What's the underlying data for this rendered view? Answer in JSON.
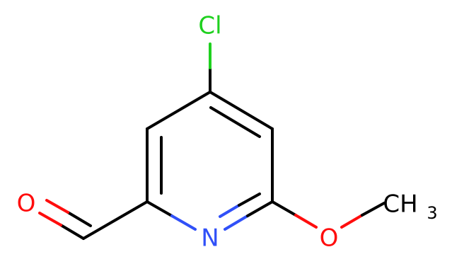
{
  "atoms": [
    {
      "label": "Cl"
    },
    {
      "label": "O"
    },
    {
      "label": "N"
    },
    {
      "label": "O"
    },
    {
      "label": "CH",
      "subscript": "3"
    }
  ]
}
